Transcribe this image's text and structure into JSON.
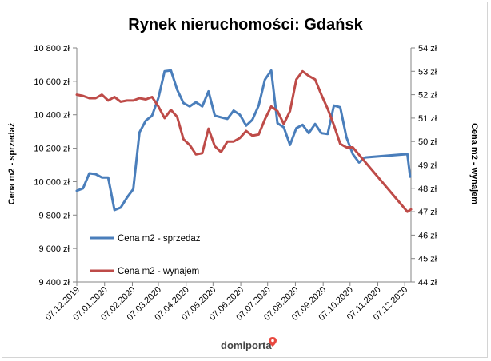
{
  "chart_data": {
    "type": "line",
    "title": "Rynek nieruchomości: Gdańsk",
    "ylabel": "Cena m2 - sprzedaż",
    "y2label": "Cena m2 - wynajem",
    "ylim": [
      9400,
      10800
    ],
    "y2lim": [
      44,
      54
    ],
    "yticks": [
      9400,
      9600,
      9800,
      10000,
      10200,
      10400,
      10600,
      10800
    ],
    "yticklabels": [
      "9 400 zł",
      "9 600 zł",
      "9 800 zł",
      "10 000 zł",
      "10 200 zł",
      "10 400 zł",
      "10 600 zł",
      "10 800 zł"
    ],
    "y2ticks": [
      44,
      45,
      46,
      47,
      48,
      49,
      50,
      51,
      52,
      53,
      54
    ],
    "y2ticklabels": [
      "44 zł",
      "45 zł",
      "46 zł",
      "47 zł",
      "48 zł",
      "49 zł",
      "50 zł",
      "51 zł",
      "52 zł",
      "53 zł",
      "54 zł"
    ],
    "xlim": [
      "2019-12-07",
      "2020-12-14"
    ],
    "xticks": [
      "2019-12-07",
      "2020-01-07",
      "2020-02-07",
      "2020-03-07",
      "2020-04-07",
      "2020-05-07",
      "2020-06-07",
      "2020-07-07",
      "2020-08-07",
      "2020-09-07",
      "2020-10-07",
      "2020-11-07",
      "2020-12-07"
    ],
    "xticklabels": [
      "07.12.2019",
      "07.01.2020",
      "07.02.2020",
      "07.03.2020",
      "07.04.2020",
      "07.05.2020",
      "07.06.2020",
      "07.07.2020",
      "07.08.2020",
      "07.09.2020",
      "07.10.2020",
      "07.11.2020",
      "07.12.2020"
    ],
    "legend_position": "bottom-left",
    "grid": false,
    "series": [
      {
        "name": "Cena m2 - sprzedaż",
        "axis": "left",
        "color": "#4a7ebb",
        "points": [
          [
            "2019-12-07",
            9945
          ],
          [
            "2019-12-14",
            9960
          ],
          [
            "2019-12-21",
            10050
          ],
          [
            "2019-12-28",
            10045
          ],
          [
            "2020-01-04",
            10025
          ],
          [
            "2020-01-11",
            10025
          ],
          [
            "2020-01-18",
            9830
          ],
          [
            "2020-01-25",
            9845
          ],
          [
            "2020-02-01",
            9905
          ],
          [
            "2020-02-08",
            9955
          ],
          [
            "2020-02-15",
            10295
          ],
          [
            "2020-02-22",
            10365
          ],
          [
            "2020-02-29",
            10395
          ],
          [
            "2020-03-07",
            10500
          ],
          [
            "2020-03-14",
            10660
          ],
          [
            "2020-03-21",
            10665
          ],
          [
            "2020-03-28",
            10550
          ],
          [
            "2020-04-04",
            10470
          ],
          [
            "2020-04-11",
            10450
          ],
          [
            "2020-04-18",
            10475
          ],
          [
            "2020-04-25",
            10450
          ],
          [
            "2020-05-02",
            10540
          ],
          [
            "2020-05-09",
            10395
          ],
          [
            "2020-05-16",
            10385
          ],
          [
            "2020-05-23",
            10375
          ],
          [
            "2020-05-30",
            10425
          ],
          [
            "2020-06-06",
            10400
          ],
          [
            "2020-06-13",
            10335
          ],
          [
            "2020-06-20",
            10370
          ],
          [
            "2020-06-27",
            10455
          ],
          [
            "2020-07-04",
            10610
          ],
          [
            "2020-07-11",
            10665
          ],
          [
            "2020-07-18",
            10350
          ],
          [
            "2020-07-25",
            10325
          ],
          [
            "2020-08-01",
            10220
          ],
          [
            "2020-08-08",
            10320
          ],
          [
            "2020-08-15",
            10340
          ],
          [
            "2020-08-22",
            10290
          ],
          [
            "2020-08-29",
            10345
          ],
          [
            "2020-09-05",
            10290
          ],
          [
            "2020-09-12",
            10285
          ],
          [
            "2020-09-19",
            10455
          ],
          [
            "2020-09-26",
            10445
          ],
          [
            "2020-10-03",
            10265
          ],
          [
            "2020-10-10",
            10165
          ],
          [
            "2020-10-17",
            10115
          ],
          [
            "2020-10-24",
            10145
          ],
          [
            "2020-12-10",
            10165
          ],
          [
            "2020-12-13",
            10030
          ]
        ]
      },
      {
        "name": "Cena m2 - wynajem",
        "axis": "right",
        "color": "#be4b48",
        "points": [
          [
            "2019-12-07",
            52.0
          ],
          [
            "2019-12-14",
            51.95
          ],
          [
            "2019-12-21",
            51.85
          ],
          [
            "2019-12-28",
            51.85
          ],
          [
            "2020-01-04",
            52.0
          ],
          [
            "2020-01-11",
            51.75
          ],
          [
            "2020-01-18",
            51.9
          ],
          [
            "2020-01-25",
            51.7
          ],
          [
            "2020-02-01",
            51.75
          ],
          [
            "2020-02-08",
            51.75
          ],
          [
            "2020-02-15",
            51.85
          ],
          [
            "2020-02-22",
            51.8
          ],
          [
            "2020-02-29",
            51.9
          ],
          [
            "2020-03-07",
            51.5
          ],
          [
            "2020-03-14",
            51.0
          ],
          [
            "2020-03-21",
            51.35
          ],
          [
            "2020-03-28",
            51.05
          ],
          [
            "2020-04-04",
            50.1
          ],
          [
            "2020-04-11",
            49.85
          ],
          [
            "2020-04-18",
            49.45
          ],
          [
            "2020-04-25",
            49.5
          ],
          [
            "2020-05-02",
            50.55
          ],
          [
            "2020-05-09",
            49.8
          ],
          [
            "2020-05-16",
            49.55
          ],
          [
            "2020-05-23",
            50.0
          ],
          [
            "2020-05-30",
            50.0
          ],
          [
            "2020-06-06",
            50.15
          ],
          [
            "2020-06-13",
            50.45
          ],
          [
            "2020-06-20",
            50.25
          ],
          [
            "2020-06-27",
            50.3
          ],
          [
            "2020-07-04",
            50.95
          ],
          [
            "2020-07-11",
            51.5
          ],
          [
            "2020-07-18",
            51.3
          ],
          [
            "2020-07-25",
            50.75
          ],
          [
            "2020-08-01",
            51.3
          ],
          [
            "2020-08-08",
            52.65
          ],
          [
            "2020-08-15",
            53.0
          ],
          [
            "2020-08-22",
            52.8
          ],
          [
            "2020-08-29",
            52.65
          ],
          [
            "2020-09-05",
            52.0
          ],
          [
            "2020-09-12",
            51.4
          ],
          [
            "2020-09-19",
            50.7
          ],
          [
            "2020-09-26",
            49.9
          ],
          [
            "2020-10-03",
            49.75
          ],
          [
            "2020-10-10",
            49.75
          ],
          [
            "2020-12-10",
            47.0
          ],
          [
            "2020-12-14",
            47.1
          ]
        ]
      }
    ],
    "watermark": "domiporta"
  }
}
